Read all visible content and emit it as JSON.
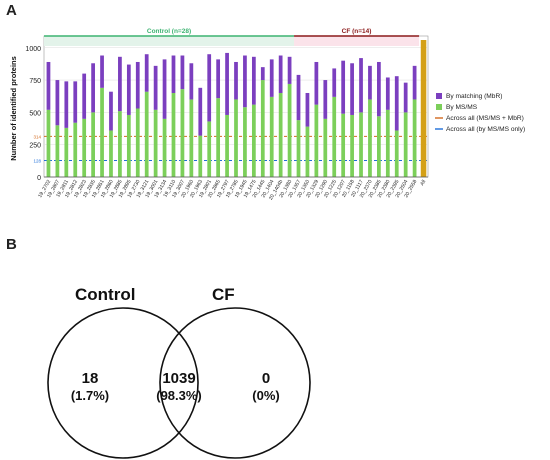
{
  "panel_a": "A",
  "panel_b": "B",
  "chart_data": {
    "type": "bar",
    "stacked": true,
    "ylabel": "Number of identified proteins",
    "ylim": [
      0,
      1060
    ],
    "yticks": [
      0,
      250,
      500,
      750,
      1000
    ],
    "ref_tick_labels": [
      "314",
      "128"
    ],
    "groups": [
      {
        "label": "Control (n=28)",
        "color": "#3cb371",
        "count": 28
      },
      {
        "label": "CF (n=14)",
        "color": "#8b1a1a",
        "count": 14
      }
    ],
    "categories": [
      "19_2702",
      "19_2807",
      "19_2811",
      "19_2812",
      "19_2823",
      "19_2835",
      "19_2851",
      "19_2860",
      "19_2885",
      "19_2895",
      "19_2730",
      "19_3121",
      "19_3001",
      "19_3134",
      "19_3110",
      "19_3007",
      "20_1960",
      "20_1963",
      "19_2801",
      "20_2865",
      "19_2797",
      "19_2785",
      "19_1945",
      "19_1475",
      "20_1445",
      "20_1404",
      "20_1404b",
      "20_1380",
      "20_1357",
      "20_1350",
      "20_1329",
      "20_1290",
      "20_1225",
      "20_1207",
      "20_1158",
      "20_1117",
      "20_2370",
      "20_2385",
      "20_2380",
      "20_2395",
      "20_2504",
      "20_2558",
      "All"
    ],
    "series": [
      {
        "name": "By MS/MS",
        "values": [
          520,
          400,
          380,
          420,
          450,
          500,
          690,
          360,
          510,
          480,
          530,
          660,
          520,
          450,
          650,
          680,
          600,
          320,
          430,
          610,
          480,
          600,
          540,
          560,
          750,
          620,
          650,
          720,
          440,
          390,
          560,
          450,
          620,
          490,
          480,
          500,
          600,
          470,
          520,
          360,
          500,
          600,
          1060
        ]
      },
      {
        "name": "By matching (MbR)",
        "values": [
          370,
          350,
          360,
          320,
          350,
          380,
          250,
          300,
          420,
          390,
          360,
          290,
          340,
          460,
          290,
          260,
          280,
          370,
          520,
          300,
          480,
          290,
          400,
          370,
          100,
          290,
          290,
          210,
          350,
          260,
          330,
          300,
          220,
          410,
          400,
          420,
          260,
          420,
          250,
          420,
          230,
          260,
          0
        ]
      }
    ],
    "reference_lines": [
      {
        "name": "Across all (MS/MS + MbR)",
        "value": 314,
        "color": "#d2691e"
      },
      {
        "name": "Across all (by MS/MS only)",
        "value": 128,
        "color": "#1e6fd9"
      }
    ],
    "legend": {
      "placement": "right",
      "items": [
        {
          "label": "By matching (MbR)",
          "color": "#7b3fbf",
          "kind": "box"
        },
        {
          "label": "By MS/MS",
          "color": "#7ccf5a",
          "kind": "box"
        },
        {
          "label": "Across all (MS/MS + MbR)",
          "color": "#d2691e",
          "kind": "line"
        },
        {
          "label": "Across all (by MS/MS only)",
          "color": "#1e6fd9",
          "kind": "line"
        }
      ]
    }
  },
  "venn": {
    "left_label": "Control",
    "right_label": "CF",
    "left_only": {
      "count": "18",
      "pct": "(1.7%)"
    },
    "shared": {
      "count": "1039",
      "pct": "(98.3%)"
    },
    "right_only": {
      "count": "0",
      "pct": "(0%)"
    }
  }
}
